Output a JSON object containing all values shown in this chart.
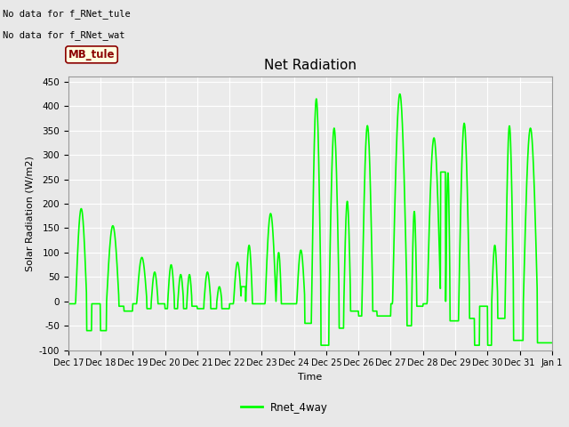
{
  "title": "Net Radiation",
  "xlabel": "Time",
  "ylabel": "Solar Radiation (W/m2)",
  "ylim": [
    -100,
    460
  ],
  "line_color": "#00FF00",
  "line_width": 1.2,
  "bg_color": "#E8E8E8",
  "plot_bg_color": "#EBEBEB",
  "annotation_text1": "No data for f_RNet_tule",
  "annotation_text2": "No data for f_RNet_wat",
  "box_label": "MB_tule",
  "legend_label": "Rnet_4way",
  "x_tick_labels": [
    "Dec 17",
    "Dec 18",
    "Dec 19",
    "Dec 20",
    "Dec 21",
    "Dec 22",
    "Dec 23",
    "Dec 24",
    "Dec 25",
    "Dec 26",
    "Dec 27",
    "Dec 28",
    "Dec 29",
    "Dec 30",
    "Dec 31",
    "Jan 1"
  ],
  "yticks": [
    -100,
    -50,
    0,
    50,
    100,
    150,
    200,
    250,
    300,
    350,
    400,
    450
  ]
}
